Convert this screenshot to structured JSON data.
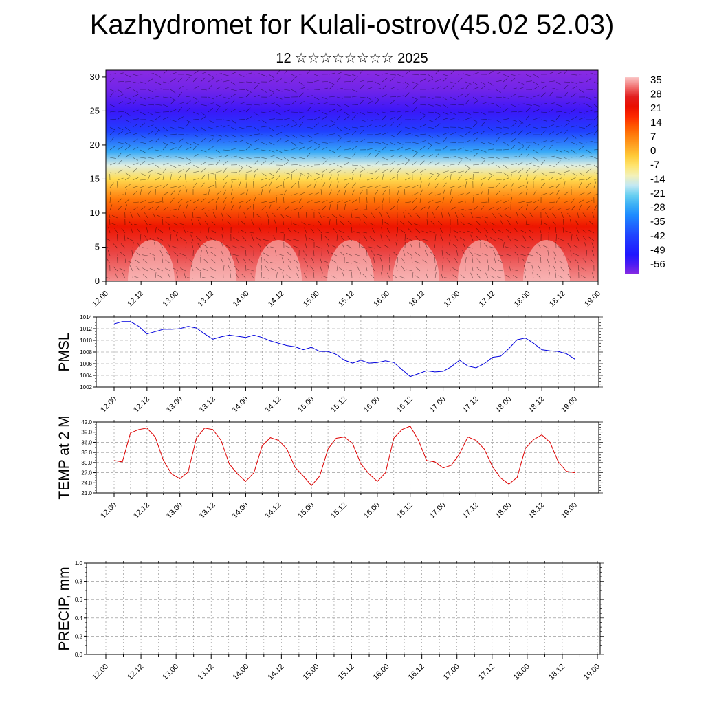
{
  "header": {
    "title": "Kazhydromet for Kulali-ostrov(45.02 52.03)",
    "subtitle": "12 ☆☆☆☆☆☆☆☆ 2025"
  },
  "colors": {
    "pmsl_line": "#0000dd",
    "temp_line": "#dd0000",
    "precip_line": "#000000"
  },
  "chart_data": [
    {
      "type": "heatmap",
      "name": "cross-section",
      "x_ticks": [
        "12.00",
        "12.12",
        "13.00",
        "13.12",
        "14.00",
        "14.12",
        "15.00",
        "15.12",
        "16.00",
        "16.12",
        "17.00",
        "17.12",
        "18.00",
        "18.12",
        "19.00"
      ],
      "y_ticks": [
        "0",
        "5",
        "10",
        "15",
        "20",
        "25",
        "30"
      ],
      "ylim": [
        0,
        31
      ],
      "colorbar_labels": [
        "35",
        "28",
        "21",
        "14",
        "7",
        "0",
        "-7",
        "-14",
        "-21",
        "-28",
        "-35",
        "-42",
        "-49",
        "-56"
      ],
      "colorbar_colors": [
        "#fbb3b3",
        "#ee2a2a",
        "#dd0000",
        "#ff4a00",
        "#ff9a10",
        "#ffcf30",
        "#ffef70",
        "#c8e6f0",
        "#3cc0f0",
        "#1e90ff",
        "#3050ff",
        "#2a1aff",
        "#6030ff",
        "#8a2be2"
      ],
      "bands": [
        {
          "height": 0,
          "temp": 32
        },
        {
          "height": 4,
          "temp": 28
        },
        {
          "height": 8,
          "temp": 20
        },
        {
          "height": 12,
          "temp": 8
        },
        {
          "height": 15,
          "temp": -5
        },
        {
          "height": 17,
          "temp": -14
        },
        {
          "height": 19,
          "temp": -26
        },
        {
          "height": 22,
          "temp": -40
        },
        {
          "height": 25,
          "temp": -52
        },
        {
          "height": 28,
          "temp": -56
        },
        {
          "height": 31,
          "temp": -58
        }
      ]
    },
    {
      "type": "line",
      "name": "PMSL",
      "ylabel": "PMSL",
      "ylim": [
        1002,
        1014
      ],
      "y_ticks": [
        "1002",
        "1004",
        "1006",
        "1008",
        "1010",
        "1012",
        "1014"
      ],
      "x_ticks": [
        "12.00",
        "12.12",
        "13.00",
        "13.12",
        "14.00",
        "14.12",
        "15.00",
        "15.12",
        "16.00",
        "16.12",
        "17.00",
        "17.12",
        "18.00",
        "18.12",
        "19.00"
      ],
      "x": [
        0,
        3,
        6,
        9,
        12,
        15,
        18,
        21,
        24,
        27,
        30,
        33,
        36,
        39,
        42,
        45,
        48,
        51,
        54,
        57,
        60,
        63,
        66,
        69,
        72,
        75,
        78,
        81,
        84,
        87,
        90,
        93,
        96,
        99,
        102,
        105,
        108,
        111,
        114,
        117,
        120,
        123,
        126,
        129,
        132,
        135,
        138,
        141,
        144,
        147,
        150,
        153,
        156,
        159,
        162,
        165,
        168
      ],
      "values": [
        1012.8,
        1013.2,
        1013.2,
        1012.4,
        1011.1,
        1011.5,
        1011.9,
        1011.9,
        1012.0,
        1012.4,
        1012.1,
        1011.1,
        1010.2,
        1010.6,
        1010.9,
        1010.7,
        1010.5,
        1010.9,
        1010.5,
        1009.9,
        1009.5,
        1009.1,
        1008.9,
        1008.4,
        1008.8,
        1008.1,
        1008.1,
        1007.6,
        1006.6,
        1006.1,
        1006.6,
        1006.1,
        1006.2,
        1006.5,
        1006.2,
        1005.0,
        1003.8,
        1004.3,
        1004.8,
        1004.6,
        1004.7,
        1005.5,
        1006.6,
        1005.6,
        1005.3,
        1006.0,
        1007.1,
        1007.3,
        1008.6,
        1010.1,
        1010.4,
        1009.5,
        1008.4,
        1008.2,
        1008.1,
        1007.7,
        1006.8
      ]
    },
    {
      "type": "line",
      "name": "TEMP at 2 M",
      "ylabel": "TEMP at 2 M",
      "ylim": [
        21,
        42
      ],
      "y_ticks": [
        "21.0",
        "24.0",
        "27.0",
        "30.0",
        "33.0",
        "36.0",
        "39.0",
        "42.0"
      ],
      "x_ticks": [
        "12.00",
        "12.12",
        "13.00",
        "13.12",
        "14.00",
        "14.12",
        "15.00",
        "15.12",
        "16.00",
        "16.12",
        "17.00",
        "17.12",
        "18.00",
        "18.12",
        "19.00"
      ],
      "x": [
        0,
        3,
        6,
        9,
        12,
        15,
        18,
        21,
        24,
        27,
        30,
        33,
        36,
        39,
        42,
        45,
        48,
        51,
        54,
        57,
        60,
        63,
        66,
        69,
        72,
        75,
        78,
        81,
        84,
        87,
        90,
        93,
        96,
        99,
        102,
        105,
        108,
        111,
        114,
        117,
        120,
        123,
        126,
        129,
        132,
        135,
        138,
        141,
        144,
        147,
        150,
        153,
        156,
        159,
        162,
        165,
        168
      ],
      "values": [
        30.6,
        30.2,
        38.8,
        39.8,
        40.2,
        37.6,
        30.6,
        26.6,
        25.2,
        27.2,
        37.2,
        40.2,
        39.8,
        36.6,
        29.6,
        26.6,
        24.4,
        27.0,
        35.0,
        37.4,
        36.6,
        34.0,
        28.6,
        26.0,
        23.2,
        26.0,
        34.0,
        37.2,
        37.6,
        35.6,
        29.6,
        26.6,
        24.4,
        27.0,
        37.2,
        39.8,
        40.8,
        36.6,
        30.6,
        30.2,
        28.4,
        29.2,
        32.6,
        37.6,
        36.6,
        34.0,
        28.8,
        25.4,
        23.6,
        25.6,
        34.2,
        36.8,
        38.2,
        36.0,
        30.2,
        27.4,
        27.0
      ]
    },
    {
      "type": "line",
      "name": "PRECIP, mm",
      "ylabel": "PRECIP, mm",
      "ylim": [
        0,
        1.0
      ],
      "y_ticks": [
        "0.0",
        "0.2",
        "0.4",
        "0.6",
        "0.8",
        "1.0"
      ],
      "x_ticks": [
        "12.00",
        "12.12",
        "13.00",
        "13.12",
        "14.00",
        "14.12",
        "15.00",
        "15.12",
        "16.00",
        "16.12",
        "17.00",
        "17.12",
        "18.00",
        "18.12",
        "19.00"
      ],
      "x": [
        0,
        168
      ],
      "values": [
        0,
        0
      ]
    }
  ]
}
